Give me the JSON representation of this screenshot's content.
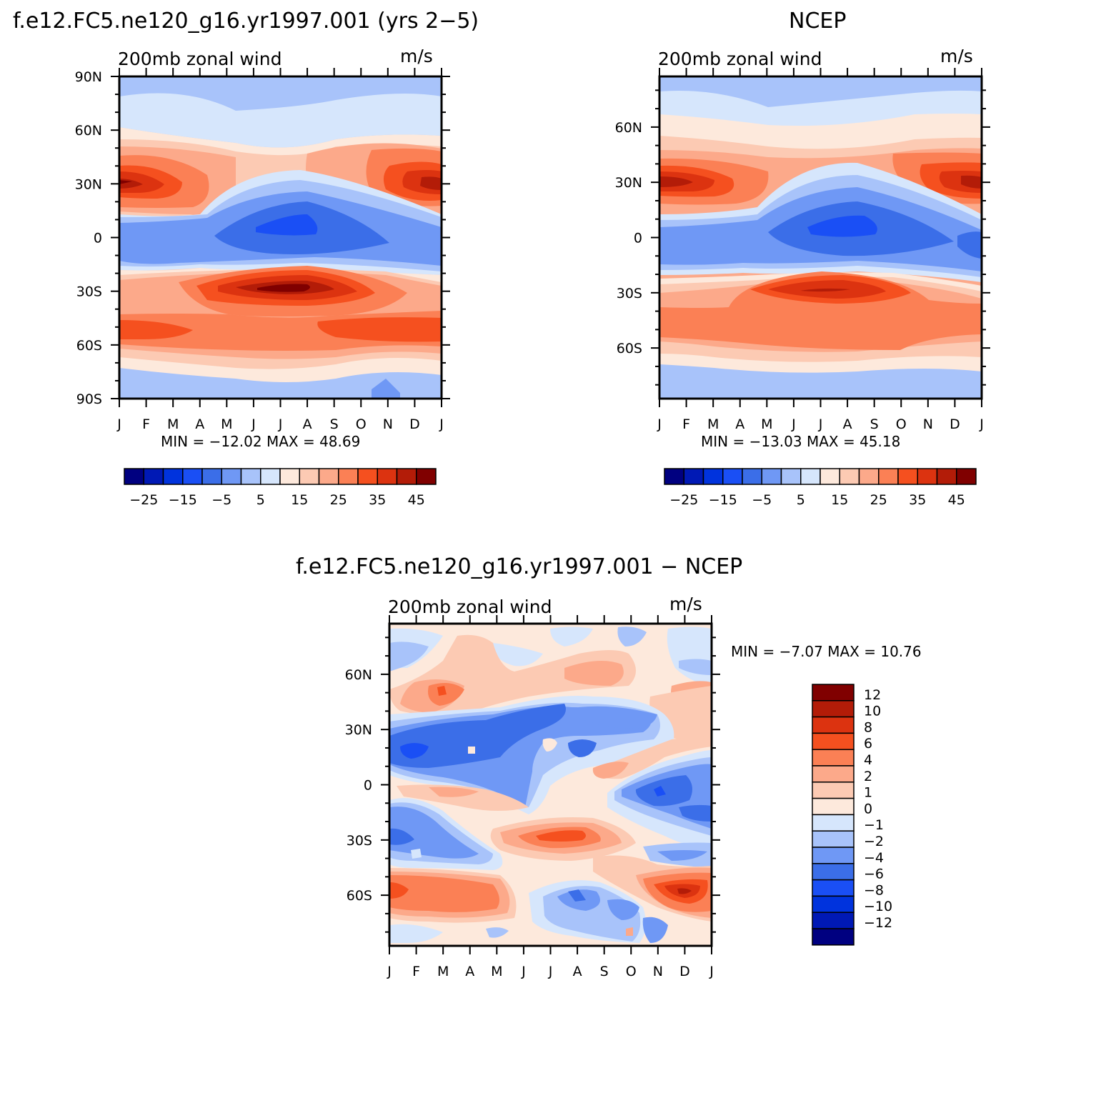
{
  "panels": [
    {
      "title": "f.e12.FC5.ne120_g16.yr1997.001 (yrs 2−5)",
      "subtitle_left": "200mb zonal wind",
      "subtitle_right": "m/s",
      "min_max": "MIN = −12.02 MAX =   48.69"
    },
    {
      "title": "NCEP",
      "subtitle_left": "200mb zonal wind",
      "subtitle_right": "m/s",
      "min_max": "MIN = −13.03 MAX =   45.18"
    },
    {
      "title": "f.e12.FC5.ne120_g16.yr1997.001 − NCEP",
      "subtitle_left": "200mb zonal wind",
      "subtitle_right": "m/s",
      "min_max": "MIN =   −7.07 MAX =   10.76"
    }
  ],
  "colors": {
    "main_scale": [
      "#000080",
      "#0019b5",
      "#0033dd",
      "#1a4ff5",
      "#3b6ee8",
      "#6f98f5",
      "#a8c3fa",
      "#d6e6fc",
      "#fde9dc",
      "#fccab3",
      "#fca98a",
      "#fb8055",
      "#f5501f",
      "#dc3310",
      "#b31c08",
      "#800000"
    ],
    "diff_scale": [
      "#000080",
      "#0019b5",
      "#0033dd",
      "#1a4ff5",
      "#3b6ee8",
      "#6f98f5",
      "#a8c3fa",
      "#d6e6fc",
      "#fde9dc",
      "#fccab3",
      "#fca98a",
      "#fb8055",
      "#f5501f",
      "#dc3310",
      "#b31c08",
      "#800000"
    ]
  },
  "chart_data": [
    {
      "type": "heatmap",
      "title": "f.e12.FC5.ne120_g16.yr1997.001 (yrs 2−5)",
      "subtitle": "200mb zonal wind",
      "units": "m/s",
      "x_ticks": [
        "J",
        "F",
        "M",
        "A",
        "M",
        "J",
        "J",
        "A",
        "S",
        "O",
        "N",
        "D",
        "J"
      ],
      "y_ticks": [
        "90N",
        "60N",
        "30N",
        "0",
        "30S",
        "60S",
        "90S"
      ],
      "ylim": [
        -90,
        90
      ],
      "colorbar_labels": [
        "−25",
        "−15",
        "−5",
        "5",
        "15",
        "25",
        "35",
        "45"
      ],
      "min": -12.02,
      "max": 48.69
    },
    {
      "type": "heatmap",
      "title": "NCEP",
      "subtitle": "200mb zonal wind",
      "units": "m/s",
      "x_ticks": [
        "J",
        "F",
        "M",
        "A",
        "M",
        "J",
        "J",
        "A",
        "S",
        "O",
        "N",
        "D",
        "J"
      ],
      "y_ticks": [
        "60N",
        "30N",
        "0",
        "30S",
        "60S"
      ],
      "ylim": [
        -87.5,
        87.5
      ],
      "colorbar_labels": [
        "−25",
        "−15",
        "−5",
        "5",
        "15",
        "25",
        "35",
        "45"
      ],
      "min": -13.03,
      "max": 45.18
    },
    {
      "type": "heatmap",
      "title": "f.e12.FC5.ne120_g16.yr1997.001 − NCEP",
      "subtitle": "200mb zonal wind",
      "units": "m/s",
      "x_ticks": [
        "J",
        "F",
        "M",
        "A",
        "M",
        "J",
        "J",
        "A",
        "S",
        "O",
        "N",
        "D",
        "J"
      ],
      "y_ticks": [
        "60N",
        "30N",
        "0",
        "30S",
        "60S"
      ],
      "ylim": [
        -87.5,
        87.5
      ],
      "colorbar_labels": [
        "12",
        "10",
        "8",
        "6",
        "4",
        "2",
        "1",
        "0",
        "−1",
        "−2",
        "−4",
        "−6",
        "−8",
        "−10",
        "−12"
      ],
      "min": -7.07,
      "max": 10.76
    }
  ]
}
